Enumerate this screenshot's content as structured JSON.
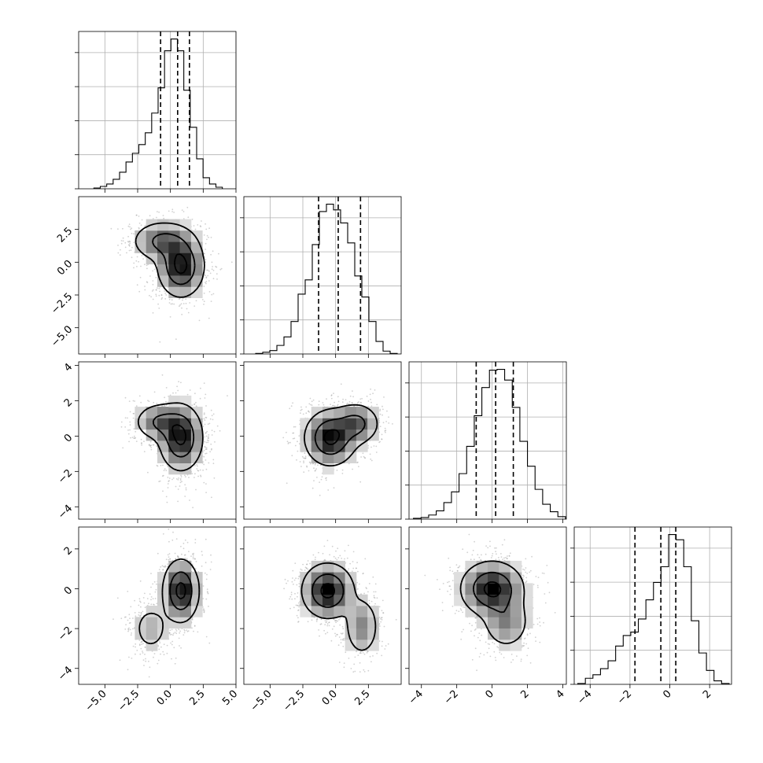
{
  "chart_data": {
    "type": "corner",
    "n_params": 4,
    "grid": true,
    "colors": {
      "line": "#000000",
      "grid": "#b0b0b0",
      "scatter": "#9a9a9a"
    },
    "params": [
      {
        "range": [
          -7,
          5
        ],
        "ticks": [
          -5.0,
          -2.5,
          0.0,
          2.5,
          5.0
        ],
        "tick_labels": [
          "−5.0",
          "−2.5",
          "0.0",
          "2.5",
          "5.0"
        ]
      },
      {
        "range": [
          -7,
          5
        ],
        "ticks": [
          -5.0,
          -2.5,
          0.0,
          2.5
        ],
        "tick_labels": [
          "−5.0",
          "−2.5",
          "0.0",
          "2.5"
        ]
      },
      {
        "range": [
          -4.7,
          4.2
        ],
        "ticks": [
          -4,
          -2,
          0,
          2,
          4
        ],
        "tick_labels": [
          "−4",
          "−2",
          "0",
          "2",
          "4"
        ]
      },
      {
        "range": [
          -4.8,
          3.1
        ],
        "ticks": [
          -4,
          -2,
          0,
          2
        ],
        "tick_labels": [
          "−4",
          "−2",
          "0",
          "2"
        ]
      }
    ],
    "histograms": [
      {
        "bins": [
          -5.84,
          -5.35,
          -4.86,
          -4.37,
          -3.88,
          -3.39,
          -2.9,
          -2.41,
          -1.92,
          -1.43,
          -0.94,
          -0.45,
          0.04,
          0.53,
          1.02,
          1.51,
          2.0,
          2.49,
          2.98,
          3.47,
          3.96
        ],
        "counts": [
          1,
          3,
          6,
          12,
          21,
          34,
          45,
          56,
          71,
          96,
          128,
          175,
          190,
          175,
          125,
          78,
          38,
          14,
          6,
          2
        ],
        "quantiles": [
          -0.75,
          0.55,
          1.45
        ]
      },
      {
        "bins": [
          -6.1,
          -5.56,
          -5.02,
          -4.48,
          -3.94,
          -3.4,
          -2.86,
          -2.32,
          -1.78,
          -1.24,
          -0.7,
          -0.16,
          0.38,
          0.92,
          1.46,
          2.0,
          2.54,
          3.08,
          3.62,
          4.16,
          4.7
        ],
        "counts": [
          1,
          3,
          6,
          15,
          30,
          57,
          105,
          130,
          192,
          250,
          263,
          253,
          230,
          195,
          137,
          100,
          57,
          22,
          5,
          1
        ],
        "quantiles": [
          -1.3,
          0.2,
          1.9
        ]
      },
      {
        "bins": [
          -4.45,
          -4.02,
          -3.59,
          -3.16,
          -2.73,
          -2.3,
          -1.87,
          -1.44,
          -1.01,
          -0.58,
          -0.15,
          0.28,
          0.71,
          1.14,
          1.57,
          2.0,
          2.43,
          2.86,
          3.29,
          3.72,
          4.15
        ],
        "counts": [
          1,
          2,
          5,
          10,
          20,
          33,
          55,
          88,
          125,
          159,
          180,
          181,
          168,
          135,
          94,
          64,
          36,
          18,
          9,
          3
        ],
        "quantiles": [
          -0.9,
          0.2,
          1.2
        ]
      },
      {
        "bins": [
          -4.62,
          -4.24,
          -3.86,
          -3.48,
          -3.1,
          -2.72,
          -2.34,
          -1.96,
          -1.58,
          -1.2,
          -0.82,
          -0.44,
          -0.06,
          0.32,
          0.7,
          1.08,
          1.46,
          1.84,
          2.22,
          2.6,
          2.98
        ],
        "counts": [
          1,
          7,
          11,
          18,
          27,
          44,
          56,
          60,
          75,
          97,
          117,
          135,
          172,
          166,
          135,
          73,
          36,
          16,
          4,
          1
        ],
        "quantiles": [
          -1.75,
          -0.45,
          0.3
        ]
      }
    ],
    "contour_levels": [
      "39.3%",
      "86.5%",
      "98.9%"
    ],
    "pairs": [
      {
        "x_param": 0,
        "y_param": 1,
        "components": [
          {
            "weight": 0.65,
            "mean": [
              0.8,
              -0.3
            ],
            "sd": [
              0.9,
              1.2
            ]
          },
          {
            "weight": 0.35,
            "mean": [
              -0.6,
              1.6
            ],
            "sd": [
              1.2,
              0.8
            ]
          }
        ]
      },
      {
        "x_param": 0,
        "y_param": 2,
        "components": [
          {
            "weight": 0.72,
            "mean": [
              0.8,
              -0.1
            ],
            "sd": [
              0.85,
              0.95
            ]
          },
          {
            "weight": 0.28,
            "mean": [
              -0.8,
              0.8
            ],
            "sd": [
              1.0,
              0.55
            ]
          }
        ]
      },
      {
        "x_param": 1,
        "y_param": 2,
        "components": [
          {
            "weight": 0.7,
            "mean": [
              -0.4,
              -0.1
            ],
            "sd": [
              1.0,
              0.8
            ]
          },
          {
            "weight": 0.3,
            "mean": [
              1.6,
              0.7
            ],
            "sd": [
              0.9,
              0.6
            ]
          }
        ]
      },
      {
        "x_param": 0,
        "y_param": 3,
        "components": [
          {
            "weight": 0.8,
            "mean": [
              0.8,
              -0.1
            ],
            "sd": [
              0.7,
              0.8
            ]
          },
          {
            "weight": 0.2,
            "mean": [
              -1.5,
              -2.0
            ],
            "sd": [
              0.8,
              0.7
            ]
          }
        ]
      },
      {
        "x_param": 1,
        "y_param": 3,
        "components": [
          {
            "weight": 0.75,
            "mean": [
              -0.6,
              -0.1
            ],
            "sd": [
              1.0,
              0.7
            ]
          },
          {
            "weight": 0.25,
            "mean": [
              2.0,
              -1.9
            ],
            "sd": [
              0.7,
              0.8
            ]
          }
        ]
      },
      {
        "x_param": 2,
        "y_param": 3,
        "components": [
          {
            "weight": 0.75,
            "mean": [
              0.0,
              0.0
            ],
            "sd": [
              0.9,
              0.7
            ]
          },
          {
            "weight": 0.25,
            "mean": [
              0.8,
              -1.7
            ],
            "sd": [
              0.7,
              0.7
            ]
          }
        ]
      }
    ]
  }
}
